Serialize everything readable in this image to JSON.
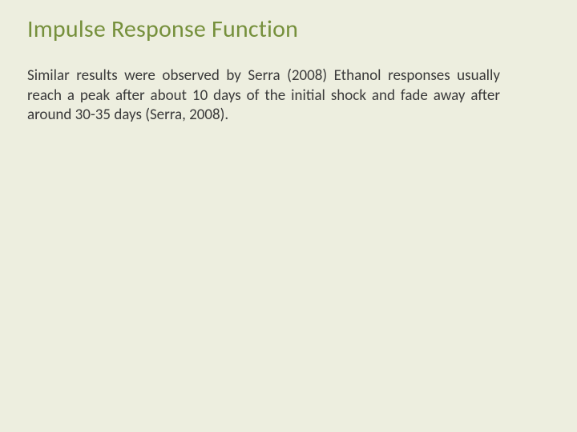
{
  "slide": {
    "title": "Impulse Response Function",
    "body": "Similar results were observed by Serra (2008) Ethanol responses usually reach a peak after about 10 days of the initial shock and fade away after around 30-35 days (Serra, 2008).",
    "background_color": "#edeedf",
    "title_color": "#76903c",
    "title_fontsize": 30,
    "body_color": "#3a3a3a",
    "body_fontsize": 19,
    "body_align": "justify"
  }
}
